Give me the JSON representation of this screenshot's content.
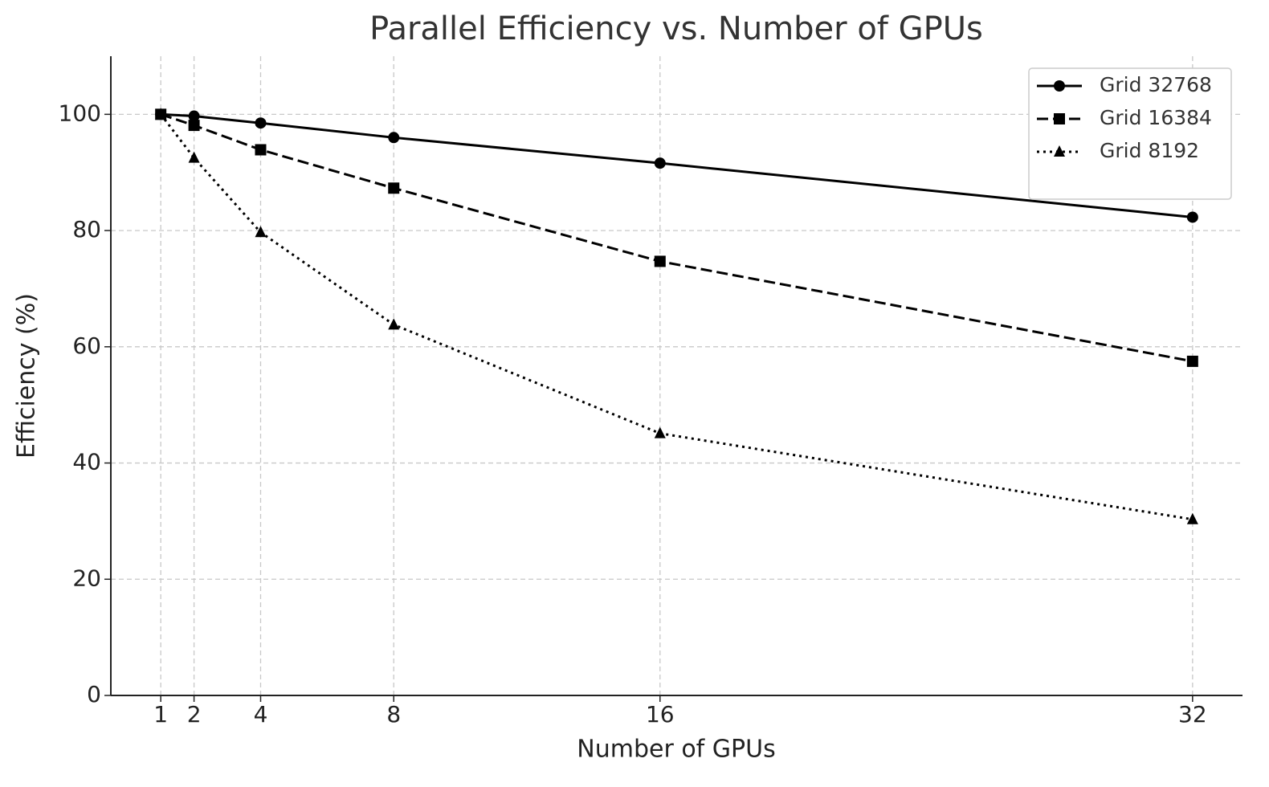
{
  "chart_data": {
    "type": "line",
    "title": "Parallel Efficiency vs. Number of GPUs",
    "x_label": "Number of GPUs",
    "y_label": "Efficiency (%)",
    "x": [
      1,
      2,
      4,
      8,
      16,
      32
    ],
    "series": [
      {
        "name": "Grid 32768",
        "color": "#000000",
        "dash": "solid",
        "marker": "circle",
        "values": [
          100,
          99.7,
          98.5,
          96.0,
          91.6,
          82.3
        ]
      },
      {
        "name": "Grid 16384",
        "color": "#000000",
        "dash": "dashed",
        "marker": "square",
        "values": [
          100,
          98.1,
          93.9,
          87.3,
          74.7,
          57.5
        ]
      },
      {
        "name": "Grid 8192",
        "color": "#000000",
        "dash": "dotted",
        "marker": "triangle",
        "values": [
          100,
          92.5,
          79.7,
          63.8,
          45.1,
          30.3
        ]
      }
    ],
    "xlim": [
      -0.5,
      33.5
    ],
    "xticks": [
      1,
      2,
      4,
      8,
      16,
      32
    ],
    "ylim": [
      0,
      110
    ],
    "yticks": [
      0,
      20,
      40,
      60,
      80,
      100
    ],
    "grid": true,
    "legend": "upper right"
  }
}
